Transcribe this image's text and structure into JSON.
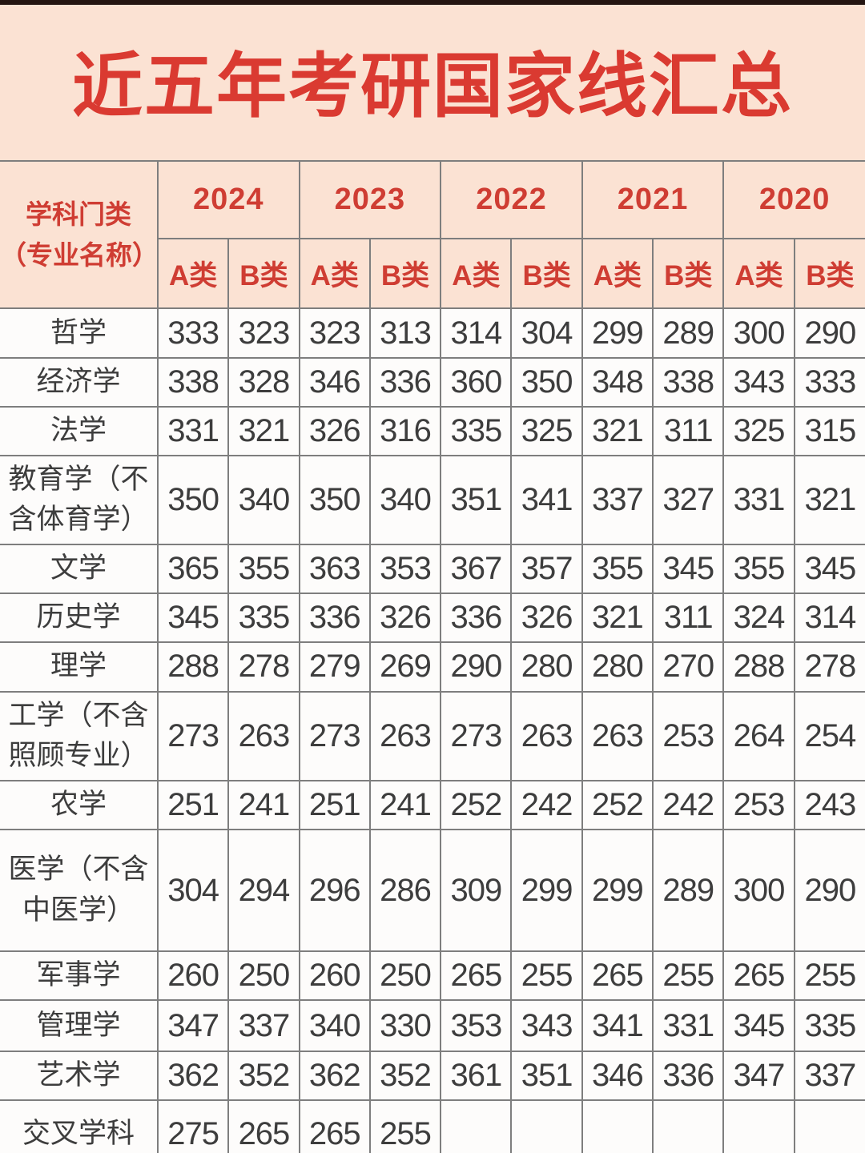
{
  "page": {
    "title": "近五年考研国家线汇总"
  },
  "colors": {
    "page_background": "#fbe2d3",
    "title_red": "#da3a31",
    "header_red": "#cf3d33",
    "cell_background": "#fdfcfb",
    "data_text": "#3d3d3d",
    "grid_line": "#7e7e7e"
  },
  "table": {
    "corner_header_line1": "学科门类",
    "corner_header_line2": "（专业名称）",
    "years": [
      "2024",
      "2023",
      "2022",
      "2021",
      "2020"
    ],
    "class_labels": [
      "A类",
      "B类"
    ],
    "rows": [
      {
        "label": "哲学",
        "values": [
          "333",
          "323",
          "323",
          "313",
          "314",
          "304",
          "299",
          "289",
          "300",
          "290"
        ]
      },
      {
        "label": "经济学",
        "values": [
          "338",
          "328",
          "346",
          "336",
          "360",
          "350",
          "348",
          "338",
          "343",
          "333"
        ]
      },
      {
        "label": "法学",
        "values": [
          "331",
          "321",
          "326",
          "316",
          "335",
          "325",
          "321",
          "311",
          "325",
          "315"
        ]
      },
      {
        "label": "教育学（不含体育学）",
        "values": [
          "350",
          "340",
          "350",
          "340",
          "351",
          "341",
          "337",
          "327",
          "331",
          "321"
        ]
      },
      {
        "label": "文学",
        "values": [
          "365",
          "355",
          "363",
          "353",
          "367",
          "357",
          "355",
          "345",
          "355",
          "345"
        ]
      },
      {
        "label": "历史学",
        "values": [
          "345",
          "335",
          "336",
          "326",
          "336",
          "326",
          "321",
          "311",
          "324",
          "314"
        ]
      },
      {
        "label": "理学",
        "values": [
          "288",
          "278",
          "279",
          "269",
          "290",
          "280",
          "280",
          "270",
          "288",
          "278"
        ]
      },
      {
        "label": "工学（不含照顾专业）",
        "values": [
          "273",
          "263",
          "273",
          "263",
          "273",
          "263",
          "263",
          "253",
          "264",
          "254"
        ]
      },
      {
        "label": "农学",
        "values": [
          "251",
          "241",
          "251",
          "241",
          "252",
          "242",
          "252",
          "242",
          "253",
          "243"
        ]
      },
      {
        "label": "医学（不含中医学）",
        "values": [
          "304",
          "294",
          "296",
          "286",
          "309",
          "299",
          "299",
          "289",
          "300",
          "290"
        ]
      },
      {
        "label": "军事学",
        "values": [
          "260",
          "250",
          "260",
          "250",
          "265",
          "255",
          "265",
          "255",
          "265",
          "255"
        ]
      },
      {
        "label": "管理学",
        "values": [
          "347",
          "337",
          "340",
          "330",
          "353",
          "343",
          "341",
          "331",
          "345",
          "335"
        ]
      },
      {
        "label": "艺术学",
        "values": [
          "362",
          "352",
          "362",
          "352",
          "361",
          "351",
          "346",
          "336",
          "347",
          "337"
        ]
      },
      {
        "label": "交叉学科",
        "values": [
          "275",
          "265",
          "265",
          "255",
          "",
          "",
          "",
          "",
          "",
          ""
        ]
      }
    ]
  }
}
